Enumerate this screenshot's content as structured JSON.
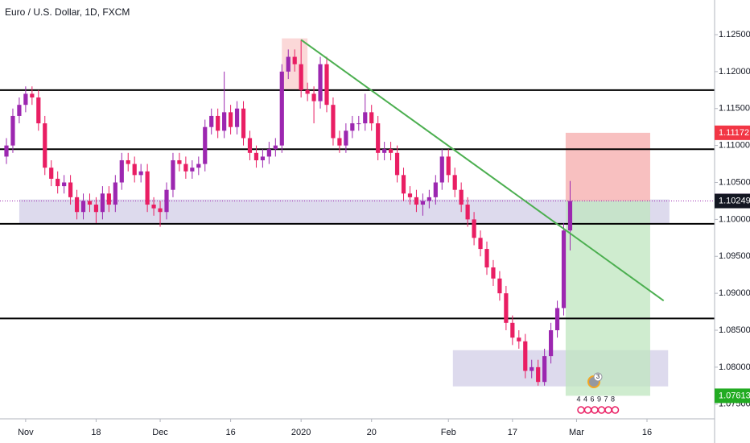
{
  "chart_data": {
    "type": "candlestick",
    "title": "Euro / U.S. Dollar, 1D, FXCM",
    "up_color": "#9c27b0",
    "down_color": "#e91e63",
    "open": [
      1.1085,
      1.11,
      1.114,
      1.1155,
      1.117,
      1.1165,
      1.113,
      1.107,
      1.1055,
      1.1045,
      1.105,
      1.103,
      1.101,
      1.1025,
      1.102,
      1.101,
      1.1035,
      1.102,
      1.105,
      1.108,
      1.1075,
      1.106,
      1.1065,
      1.102,
      1.1015,
      1.101,
      1.104,
      1.108,
      1.1075,
      1.1065,
      1.107,
      1.1075,
      1.1125,
      1.114,
      1.112,
      1.1145,
      1.1125,
      1.115,
      1.111,
      1.109,
      1.108,
      1.1085,
      1.1095,
      1.11,
      1.12,
      1.122,
      1.121,
      1.1175,
      1.117,
      1.116,
      1.121,
      1.1155,
      1.111,
      1.11,
      1.112,
      1.113,
      1.113,
      1.1145,
      1.113,
      1.109,
      1.1095,
      1.109,
      1.106,
      1.1035,
      1.103,
      1.102,
      1.1025,
      1.103,
      1.105,
      1.1085,
      1.106,
      1.104,
      1.102,
      1.1,
      1.0975,
      1.096,
      1.0935,
      1.092,
      1.09,
      1.086,
      1.084,
      1.0835,
      1.0795,
      1.08,
      1.078,
      1.0815,
      1.085,
      1.088,
      1.0985
    ],
    "high": [
      1.111,
      1.115,
      1.1165,
      1.118,
      1.118,
      1.1175,
      1.114,
      1.108,
      1.1065,
      1.106,
      1.106,
      1.104,
      1.1035,
      1.1035,
      1.103,
      1.1045,
      1.1045,
      1.106,
      1.109,
      1.109,
      1.1085,
      1.1075,
      1.1075,
      1.103,
      1.1025,
      1.105,
      1.109,
      1.109,
      1.1085,
      1.108,
      1.1085,
      1.1135,
      1.115,
      1.115,
      1.12,
      1.1155,
      1.116,
      1.116,
      1.112,
      1.11,
      1.1095,
      1.1105,
      1.111,
      1.121,
      1.123,
      1.123,
      1.1243,
      1.1185,
      1.118,
      1.122,
      1.122,
      1.1165,
      1.112,
      1.113,
      1.114,
      1.114,
      1.117,
      1.1155,
      1.114,
      1.1105,
      1.1105,
      1.11,
      1.107,
      1.1045,
      1.104,
      1.1035,
      1.104,
      1.106,
      1.1095,
      1.1095,
      1.107,
      1.105,
      1.103,
      1.101,
      1.0985,
      1.097,
      1.0945,
      1.093,
      1.091,
      1.087,
      1.085,
      1.0845,
      1.081,
      1.081,
      1.0825,
      1.086,
      1.089,
      1.0995,
      1.1052
    ],
    "low": [
      1.1075,
      1.109,
      1.113,
      1.1145,
      1.1155,
      1.112,
      1.106,
      1.1045,
      1.1035,
      1.1035,
      1.102,
      1.1,
      1.1,
      1.101,
      1.0995,
      1.1,
      1.101,
      1.101,
      1.104,
      1.1065,
      1.105,
      1.105,
      1.101,
      1.1005,
      1.099,
      1.1,
      1.103,
      1.1065,
      1.1055,
      1.1055,
      1.106,
      1.1065,
      1.1115,
      1.111,
      1.111,
      1.1115,
      1.1115,
      1.11,
      1.108,
      1.107,
      1.107,
      1.1075,
      1.1085,
      1.109,
      1.119,
      1.12,
      1.1165,
      1.116,
      1.113,
      1.115,
      1.1145,
      1.11,
      1.109,
      1.109,
      1.111,
      1.112,
      1.112,
      1.112,
      1.108,
      1.108,
      1.108,
      1.105,
      1.1025,
      1.102,
      1.101,
      1.1005,
      1.1015,
      1.102,
      1.104,
      1.105,
      1.103,
      1.101,
      1.099,
      1.0965,
      1.095,
      1.0925,
      1.091,
      1.089,
      1.085,
      1.083,
      1.0825,
      1.0785,
      1.0785,
      1.0775,
      1.0775,
      1.0805,
      1.084,
      1.087,
      1.0958
    ],
    "close": [
      1.11,
      1.114,
      1.1155,
      1.117,
      1.1165,
      1.113,
      1.107,
      1.1055,
      1.1045,
      1.105,
      1.103,
      1.101,
      1.1025,
      1.102,
      1.101,
      1.1035,
      1.102,
      1.105,
      1.108,
      1.1075,
      1.106,
      1.1065,
      1.102,
      1.1015,
      1.101,
      1.104,
      1.108,
      1.1075,
      1.1065,
      1.107,
      1.1075,
      1.1125,
      1.114,
      1.112,
      1.1145,
      1.1125,
      1.115,
      1.111,
      1.109,
      1.108,
      1.1085,
      1.1095,
      1.11,
      1.12,
      1.122,
      1.121,
      1.1175,
      1.117,
      1.116,
      1.121,
      1.1155,
      1.111,
      1.11,
      1.112,
      1.113,
      1.113,
      1.1145,
      1.113,
      1.109,
      1.1095,
      1.109,
      1.106,
      1.1035,
      1.103,
      1.102,
      1.1025,
      1.103,
      1.105,
      1.1085,
      1.106,
      1.104,
      1.102,
      1.1,
      1.0975,
      1.096,
      1.0935,
      1.092,
      1.09,
      1.086,
      1.084,
      1.0835,
      1.0795,
      1.08,
      1.078,
      1.0815,
      1.085,
      1.088,
      1.0985,
      1.1025
    ],
    "ylim": [
      1.07301,
      1.12969
    ],
    "yticks": [
      {
        "value": 1.075,
        "label": "1.07500"
      },
      {
        "value": 1.08,
        "label": "1.08000"
      },
      {
        "value": 1.085,
        "label": "1.08500"
      },
      {
        "value": 1.09,
        "label": "1.09000"
      },
      {
        "value": 1.095,
        "label": "1.09500"
      },
      {
        "value": 1.1,
        "label": "1.10000"
      },
      {
        "value": 1.105,
        "label": "1.10500"
      },
      {
        "value": 1.11,
        "label": "1.11000"
      },
      {
        "value": 1.115,
        "label": "1.11500"
      },
      {
        "value": 1.12,
        "label": "1.12000"
      },
      {
        "value": 1.125,
        "label": "1.12500"
      }
    ],
    "xticks": [
      {
        "value": 3,
        "label": "Nov"
      },
      {
        "value": 14,
        "label": "18"
      },
      {
        "value": 24,
        "label": "Dec"
      },
      {
        "value": 35,
        "label": "16"
      },
      {
        "value": 46,
        "label": "2020"
      },
      {
        "value": 57,
        "label": "20"
      },
      {
        "value": 69,
        "label": "Feb"
      },
      {
        "value": 79,
        "label": "17"
      },
      {
        "value": 89,
        "label": "Mar"
      },
      {
        "value": 100,
        "label": "16"
      }
    ],
    "levels": [
      1.1175,
      1.1095,
      1.0994,
      1.0866
    ],
    "trendline": {
      "x": [
        46,
        102.6
      ],
      "y": [
        1.1243,
        1.089
      ],
      "color": "#4caf50"
    },
    "zones": [
      {
        "x": [
          2,
          103.5
        ],
        "y": [
          1.0994,
          1.1027
        ],
        "color": "#b3aed6"
      },
      {
        "x": [
          69.7,
          103.3
        ],
        "y": [
          1.0774,
          1.0823
        ],
        "color": "#b3aed6"
      },
      {
        "x": [
          43,
          47
        ],
        "y": [
          1.1175,
          1.1245
        ],
        "color": "#f7a9a8"
      }
    ],
    "position": {
      "x": [
        87.3,
        100.5
      ],
      "stop": 1.11172,
      "entry": 1.1025,
      "target": 1.07613,
      "stop_color": "#f7b5b5",
      "target_color": "#bfe6bf"
    },
    "current_price": 1.1025,
    "price_tags": [
      {
        "value": 1.11172,
        "label": "1.11172",
        "color": "#f23645"
      },
      {
        "value": 1.1025,
        "label": "1.10250",
        "color": "#9c27b0"
      },
      {
        "value": 1.10249,
        "label": "1.10249",
        "color": "#131722"
      },
      {
        "value": 1.07613,
        "label": "1.07613",
        "color": "#22ab22"
      }
    ],
    "events": {
      "count": "3",
      "flags": [
        "4",
        "4",
        "6",
        "9",
        "7",
        "8"
      ]
    }
  }
}
